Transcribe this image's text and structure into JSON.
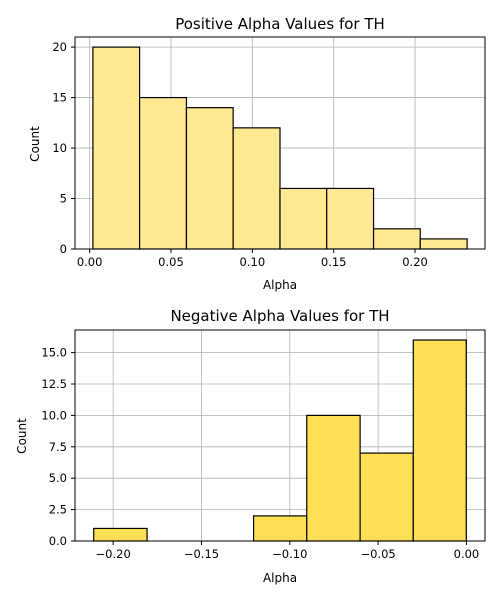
{
  "chart_data": [
    {
      "type": "bar",
      "title": "Positive Alpha Values for TH",
      "xlabel": "Alpha",
      "ylabel": "Count",
      "bin_edges": [
        0.002,
        0.0307,
        0.0595,
        0.0882,
        0.117,
        0.1457,
        0.1745,
        0.2032,
        0.232
      ],
      "values": [
        20,
        15,
        14,
        12,
        6,
        6,
        2,
        1
      ],
      "xlim": [
        -0.009,
        0.243
      ],
      "ylim": [
        0,
        21
      ],
      "xticks": [
        0.0,
        0.05,
        0.1,
        0.15,
        0.2
      ],
      "xtick_labels": [
        "0.00",
        "0.05",
        "0.10",
        "0.15",
        "0.20"
      ],
      "yticks": [
        0,
        5,
        10,
        15,
        20
      ],
      "ytick_labels": [
        "0",
        "5",
        "10",
        "15",
        "20"
      ],
      "grid": true,
      "bar_color": "#FFE993",
      "edge_color": "#000000"
    },
    {
      "type": "bar",
      "title": "Negative Alpha Values for TH",
      "xlabel": "Alpha",
      "ylabel": "Count",
      "bin_edges": [
        -0.211,
        -0.1808,
        -0.1507,
        -0.1205,
        -0.0904,
        -0.0602,
        -0.0301,
        -0.0001
      ],
      "values": [
        1,
        0,
        0,
        2,
        10,
        7,
        16
      ],
      "xlim": [
        -0.2216,
        0.0105
      ],
      "ylim": [
        0,
        16.8
      ],
      "xticks": [
        -0.2,
        -0.15,
        -0.1,
        -0.05,
        0.0
      ],
      "xtick_labels": [
        "−0.20",
        "−0.15",
        "−0.10",
        "−0.05",
        "0.00"
      ],
      "yticks": [
        0,
        2.5,
        5.0,
        7.5,
        10.0,
        12.5,
        15.0
      ],
      "ytick_labels": [
        "0.0",
        "2.5",
        "5.0",
        "7.5",
        "10.0",
        "12.5",
        "15.0"
      ],
      "grid": true,
      "bar_color": "#FFE055",
      "edge_color": "#000000"
    }
  ]
}
